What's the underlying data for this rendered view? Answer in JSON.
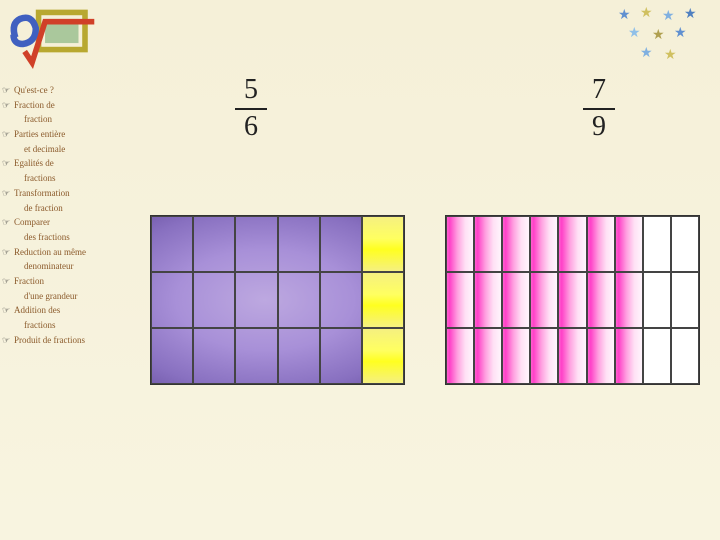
{
  "logo": {
    "sqrt_color": "#d04028",
    "c_color": "#4060c0",
    "box_color": "#b8a830",
    "inner_color": "#60a060"
  },
  "stars": {
    "colors": [
      "#6090d0",
      "#80b0e0",
      "#d0c060",
      "#5080c0",
      "#90c0e8",
      "#b0a050"
    ],
    "glyph": "★"
  },
  "nav": [
    {
      "icon": true,
      "text": "Qu'est-ce ?"
    },
    {
      "icon": true,
      "text": "Fraction de"
    },
    {
      "icon": false,
      "text": "fraction"
    },
    {
      "icon": true,
      "text": "Parties entière"
    },
    {
      "icon": false,
      "text": "et decimale"
    },
    {
      "icon": true,
      "text": "Egalités de"
    },
    {
      "icon": false,
      "text": "fractions"
    },
    {
      "icon": true,
      "text": "Transformation"
    },
    {
      "icon": false,
      "text": "de fraction"
    },
    {
      "icon": true,
      "text": "Comparer"
    },
    {
      "icon": false,
      "text": "des fractions"
    },
    {
      "icon": true,
      "text": "Reduction au même"
    },
    {
      "icon": false,
      "text": "denominateur"
    },
    {
      "icon": true,
      "text": "Fraction"
    },
    {
      "icon": false,
      "text": "d'une grandeur"
    },
    {
      "icon": true,
      "text": "Addition des"
    },
    {
      "icon": false,
      "text": "fractions"
    },
    {
      "icon": true,
      "text": "Produit de fractions"
    }
  ],
  "fraction_left": {
    "numerator": "5",
    "denominator": "6"
  },
  "fraction_right": {
    "numerator": "7",
    "denominator": "9"
  },
  "grid_a": {
    "type": "grid",
    "cols": 6,
    "rows": 3,
    "highlight_col": 6,
    "base_gradient": [
      "#bda8e0",
      "#a890d8",
      "#8870c0",
      "#6850a0",
      "#4a3878",
      "#2a2048"
    ],
    "highlight_fill": "#ffff40",
    "border_color": "#444444"
  },
  "grid_b": {
    "type": "grid",
    "cols": 9,
    "rows": 3,
    "filled_cols": [
      1,
      2,
      3,
      4,
      5,
      6,
      7
    ],
    "empty_cols": [
      8,
      9
    ],
    "fill_gradient": [
      "#ff40c8",
      "#ffa0e0",
      "#fff5fc"
    ],
    "empty_fill": "#ffffff",
    "border_color": "#444444"
  },
  "background_gradient": [
    "#f5f0d8",
    "#f8f4e0"
  ],
  "nav_text_color": "#8b5a2b"
}
